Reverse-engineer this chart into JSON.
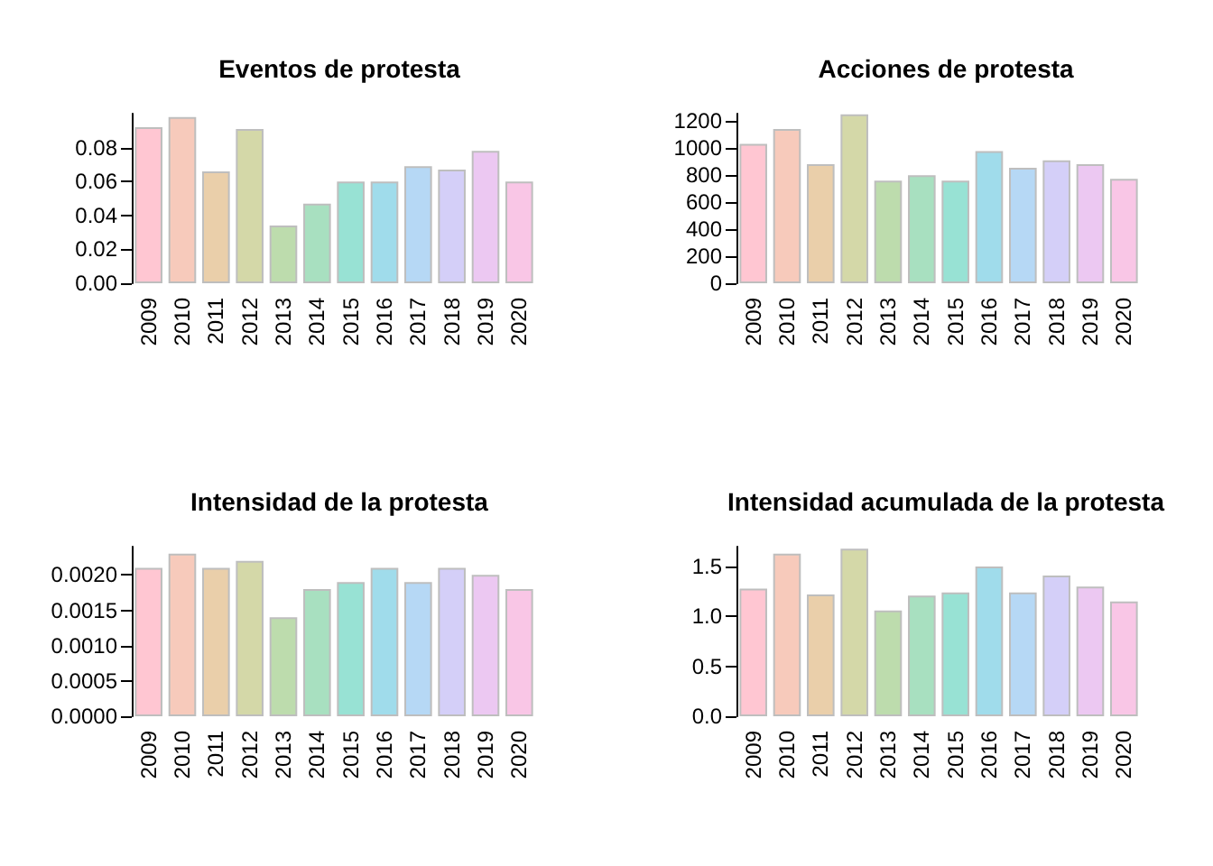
{
  "chart_data": [
    {
      "type": "bar",
      "title": "Eventos de protesta",
      "categories": [
        "2009",
        "2010",
        "2011",
        "2012",
        "2013",
        "2014",
        "2015",
        "2016",
        "2017",
        "2018",
        "2019",
        "2020"
      ],
      "values": [
        0.092,
        0.098,
        0.066,
        0.091,
        0.034,
        0.047,
        0.06,
        0.06,
        0.069,
        0.067,
        0.078,
        0.06
      ],
      "colors": [
        "#ffc6d2",
        "#f7cabb",
        "#eacfaa",
        "#d4d8a8",
        "#bddcad",
        "#a8e0c0",
        "#98e2d4",
        "#a0dceb",
        "#b6d8f5",
        "#d4cff8",
        "#ecc8f2",
        "#f9c6e6"
      ],
      "ylim": [
        0,
        0.1
      ],
      "yticks": [
        {
          "value": 0,
          "label": "0.00"
        },
        {
          "value": 0.02,
          "label": "0.02"
        },
        {
          "value": 0.04,
          "label": "0.04"
        },
        {
          "value": 0.06,
          "label": "0.06"
        },
        {
          "value": 0.08,
          "label": "0.08"
        }
      ],
      "grid": false
    },
    {
      "type": "bar",
      "title": "Acciones de protesta",
      "categories": [
        "2009",
        "2010",
        "2011",
        "2012",
        "2013",
        "2014",
        "2015",
        "2016",
        "2017",
        "2018",
        "2019",
        "2020"
      ],
      "values": [
        1028,
        1137,
        878,
        1245,
        756,
        797,
        756,
        974,
        851,
        906,
        878,
        770
      ],
      "colors": [
        "#ffc6d2",
        "#f7cabb",
        "#eacfaa",
        "#d4d8a8",
        "#bddcad",
        "#a8e0c0",
        "#98e2d4",
        "#a0dceb",
        "#b6d8f5",
        "#d4cff8",
        "#ecc8f2",
        "#f9c6e6"
      ],
      "ylim": [
        0,
        1250
      ],
      "yticks": [
        0,
        200,
        400,
        600,
        800,
        1000,
        1200
      ],
      "grid": false
    },
    {
      "type": "bar",
      "title": "Intensidad de la protesta",
      "categories": [
        "2009",
        "2010",
        "2011",
        "2012",
        "2013",
        "2014",
        "2015",
        "2016",
        "2017",
        "2018",
        "2019",
        "2020"
      ],
      "values": [
        0.0021,
        0.0023,
        0.0021,
        0.0022,
        0.0014,
        0.0018,
        0.0019,
        0.0021,
        0.0019,
        0.0021,
        0.002,
        0.0018
      ],
      "colors": [
        "#ffc6d2",
        "#f7cabb",
        "#eacfaa",
        "#d4d8a8",
        "#bddcad",
        "#a8e0c0",
        "#98e2d4",
        "#a0dceb",
        "#b6d8f5",
        "#d4cff8",
        "#ecc8f2",
        "#f9c6e6"
      ],
      "ylim": [
        0,
        0.0024
      ],
      "yticks": [
        {
          "value": 0,
          "label": "0.0000"
        },
        {
          "value": 0.0005,
          "label": "0.0005"
        },
        {
          "value": 0.001,
          "label": "0.0010"
        },
        {
          "value": 0.0015,
          "label": "0.0015"
        },
        {
          "value": 0.002,
          "label": "0.0020"
        }
      ],
      "grid": false
    },
    {
      "type": "bar",
      "title": "Intensidad acumulada de la protesta",
      "categories": [
        "2009",
        "2010",
        "2011",
        "2012",
        "2013",
        "2014",
        "2015",
        "2016",
        "2017",
        "2018",
        "2019",
        "2020"
      ],
      "values": [
        1.28,
        1.63,
        1.22,
        1.68,
        1.06,
        1.21,
        1.24,
        1.5,
        1.24,
        1.41,
        1.3,
        1.15
      ],
      "colors": [
        "#ffc6d2",
        "#f7cabb",
        "#eacfaa",
        "#d4d8a8",
        "#bddcad",
        "#a8e0c0",
        "#98e2d4",
        "#a0dceb",
        "#b6d8f5",
        "#d4cff8",
        "#ecc8f2",
        "#f9c6e6"
      ],
      "ylim": [
        0,
        1.7
      ],
      "yticks": [
        {
          "value": 0,
          "label": "0.0"
        },
        {
          "value": 0.5,
          "label": "0.5"
        },
        {
          "value": 1,
          "label": "1.0"
        },
        {
          "value": 1.5,
          "label": "1.5"
        }
      ],
      "grid": false
    }
  ]
}
